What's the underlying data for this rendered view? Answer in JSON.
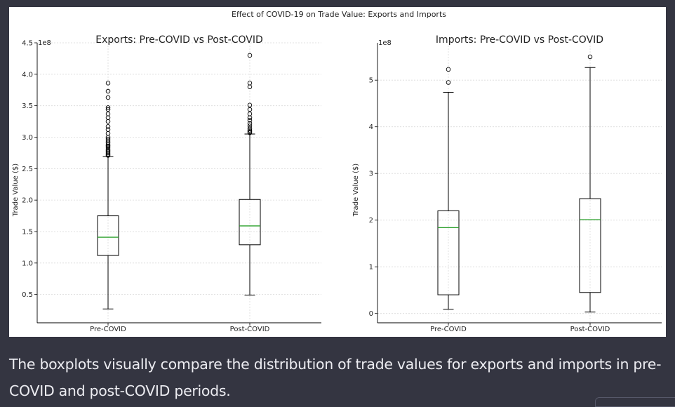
{
  "figure": {
    "suptitle": "Effect of COVID-19 on Trade Value: Exports and Imports"
  },
  "caption": "The boxplots visually compare the distribution of trade values for exports and imports in pre-COVID and post-COVID periods.",
  "chart_data": [
    {
      "type": "boxplot",
      "title": "Exports: Pre-COVID vs Post-COVID",
      "xlabel": "",
      "ylabel": "Trade Value ($)",
      "y_offset_label": "1e8",
      "ylim": [
        0.05,
        4.5
      ],
      "yticks": [
        0.5,
        1.0,
        1.5,
        2.0,
        2.5,
        3.0,
        3.5,
        4.0,
        4.5
      ],
      "ytick_labels": [
        "0.5",
        "1.0",
        "1.5",
        "2.0",
        "2.5",
        "3.0",
        "3.5",
        "4.0",
        "4.5"
      ],
      "grid": true,
      "categories": [
        "Pre-COVID",
        "Post-COVID"
      ],
      "boxes": [
        {
          "category": "Pre-COVID",
          "whisker_low": 0.27,
          "q1": 1.12,
          "median": 1.41,
          "q3": 1.75,
          "whisker_high": 2.69,
          "outliers": [
            2.71,
            2.73,
            2.75,
            2.77,
            2.79,
            2.81,
            2.84,
            2.86,
            2.88,
            2.91,
            2.94,
            2.97,
            3.0,
            3.06,
            3.12,
            3.17,
            3.25,
            3.31,
            3.37,
            3.44,
            3.47,
            3.63,
            3.73,
            3.86
          ]
        },
        {
          "category": "Post-COVID",
          "whisker_low": 0.49,
          "q1": 1.29,
          "median": 1.59,
          "q3": 2.01,
          "whisker_high": 3.05,
          "outliers": [
            3.07,
            3.09,
            3.11,
            3.14,
            3.18,
            3.22,
            3.27,
            3.31,
            3.37,
            3.44,
            3.51,
            3.8,
            3.86,
            4.3
          ]
        }
      ]
    },
    {
      "type": "boxplot",
      "title": "Imports: Pre-COVID vs Post-COVID",
      "xlabel": "",
      "ylabel": "Trade Value ($)",
      "y_offset_label": "1e8",
      "ylim": [
        -0.2,
        5.8
      ],
      "yticks": [
        0,
        1,
        2,
        3,
        4,
        5
      ],
      "ytick_labels": [
        "0",
        "1",
        "2",
        "3",
        "4",
        "5"
      ],
      "grid": true,
      "categories": [
        "Pre-COVID",
        "Post-COVID"
      ],
      "boxes": [
        {
          "category": "Pre-COVID",
          "whisker_low": 0.09,
          "q1": 0.4,
          "median": 1.84,
          "q3": 2.2,
          "whisker_high": 4.74,
          "outliers": [
            4.95,
            5.23
          ]
        },
        {
          "category": "Post-COVID",
          "whisker_low": 0.03,
          "q1": 0.45,
          "median": 2.01,
          "q3": 2.46,
          "whisker_high": 5.27,
          "outliers": [
            5.5
          ]
        }
      ]
    }
  ],
  "colors": {
    "median": "#2ca02c",
    "box": "#000000",
    "grid": "#d9d9d9",
    "background": "#343541",
    "caption_text": "#ececf1"
  }
}
